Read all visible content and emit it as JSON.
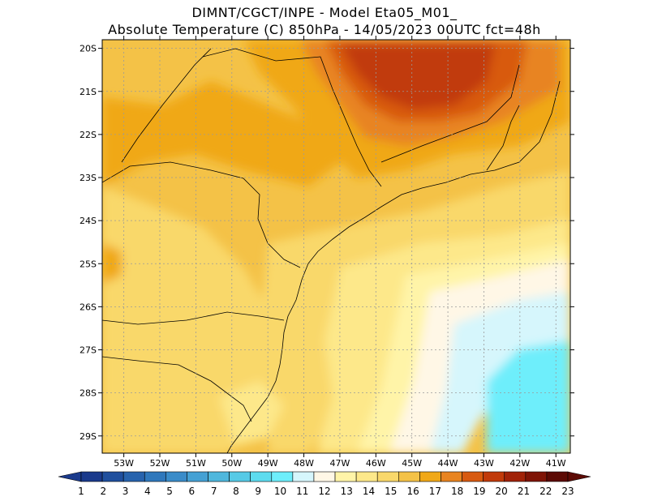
{
  "title": {
    "line1": "DIMNT/CGCT/INPE -  Model Eta05_M01_",
    "line2": "Absolute Temperature (C) 850hPa -  14/05/2023 00UTC fct=48h"
  },
  "map": {
    "lat_labels": [
      "20S",
      "21S",
      "22S",
      "23S",
      "24S",
      "25S",
      "26S",
      "27S",
      "28S",
      "29S"
    ],
    "lon_labels": [
      "53W",
      "52W",
      "51W",
      "50W",
      "49W",
      "48W",
      "47W",
      "46W",
      "45W",
      "44W",
      "43W",
      "42W",
      "41W"
    ],
    "lon_range": [
      -53.6,
      -40.6
    ],
    "lat_range": [
      -29.4,
      -19.8
    ],
    "field": "temperature_850hPa",
    "units": "C"
  },
  "colorbar": {
    "labels": [
      "1",
      "2",
      "3",
      "4",
      "5",
      "6",
      "7",
      "8",
      "9",
      "10",
      "11",
      "12",
      "13",
      "14",
      "15",
      "16",
      "17",
      "18",
      "19",
      "20",
      "21",
      "22",
      "23"
    ],
    "colors": [
      "#1a3a8c",
      "#1f4f9e",
      "#2763ad",
      "#2f78bc",
      "#3a8cc9",
      "#45a1d4",
      "#4fb7dd",
      "#56cae6",
      "#5ddcef",
      "#6eeefb",
      "#d6f6fc",
      "#fff7e6",
      "#fff4a8",
      "#fde88a",
      "#f9d86b",
      "#f4c247",
      "#f0a818",
      "#e88420",
      "#d85a10",
      "#c13a0a",
      "#a12208",
      "#7f1406",
      "#5c0a04"
    ],
    "min_arrow_color": "#1a3a8c",
    "max_arrow_color": "#5c0a04"
  }
}
